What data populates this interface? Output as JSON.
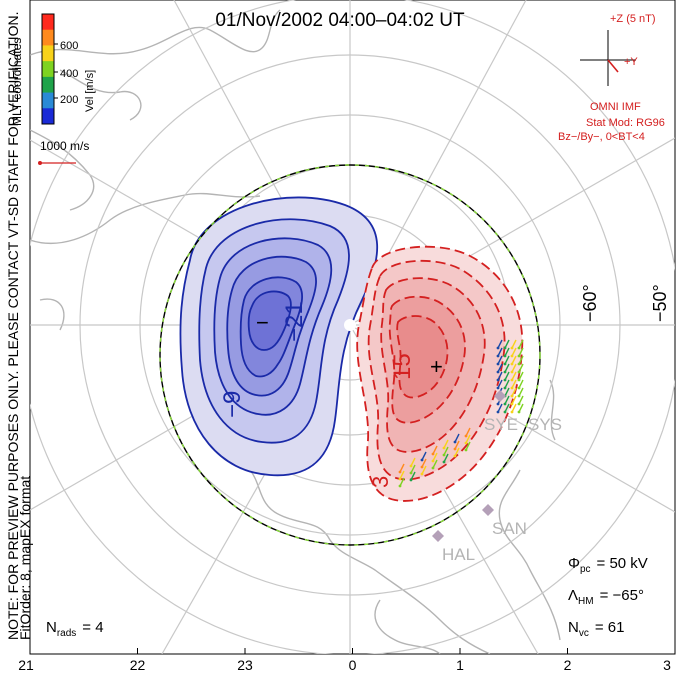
{
  "title": "01/Nov/2002 04:00–04:02 UT",
  "colorbar": {
    "label": "Vel [m/s]",
    "ticks": [
      "600",
      "400",
      "200"
    ],
    "colors": [
      "#ff2a1e",
      "#ff8a1e",
      "#f8d21a",
      "#7ed321",
      "#1fa34a",
      "#2a8ad6",
      "#1a2ad6"
    ]
  },
  "coords_label": "MLT coordinates",
  "scale_vector_label": "1000 m/s",
  "imf": {
    "plus_z": "+Z (5 nT)",
    "plus_y": "+Y",
    "source": "OMNI IMF",
    "stat_mod": "Stat Mod: RG96",
    "condition": "Bz−/By−, 0<BT<4"
  },
  "latitude_labels": [
    "−60°",
    "−50°"
  ],
  "contour_labels": [
    "−21",
    "−9",
    "15",
    "3"
  ],
  "extrema_marks": [
    "−",
    "+"
  ],
  "station_labels": [
    "SYE",
    "SYS",
    "SAN",
    "HAL"
  ],
  "stats": {
    "phi_pc": "= 50 kV",
    "lambda_hm": "= −65°",
    "n_vc": "= 61",
    "n_rads": "= 4"
  },
  "stats_symbols": {
    "phi": "Φ",
    "phi_sub": "pc",
    "lambda": "Λ",
    "lambda_sub": "HM",
    "n": "N",
    "nvc_sub": "vc",
    "nrads_sub": "rads"
  },
  "watermark": "NOTE: FOR PREVIEW PURPOSES ONLY. PLEASE CONTACT VT-SD STAFF FOR VERIFICATION.",
  "fit_info": "FitOrder: 8, mapEX format",
  "mlt_ticks": [
    "21",
    "22",
    "23",
    "0",
    "1",
    "2",
    "3"
  ],
  "colors": {
    "negative_contour": "#1a2aa8",
    "positive_contour": "#d42020",
    "red_text": "#d42020",
    "grid": "#c8c8c8",
    "coast": "#b4b4b4"
  }
}
